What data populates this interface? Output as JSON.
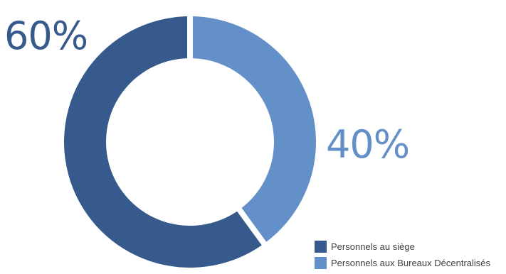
{
  "chart_data": {
    "type": "pie",
    "variant": "donut",
    "categories": [
      "Personnels au siège",
      "Personnels aux Bureaux Décentralisés"
    ],
    "values": [
      60,
      40
    ],
    "value_labels": [
      "60%",
      "40%"
    ],
    "colors": [
      "#365a8c",
      "#6390c8"
    ],
    "title": "",
    "legend_position": "bottom-right"
  }
}
